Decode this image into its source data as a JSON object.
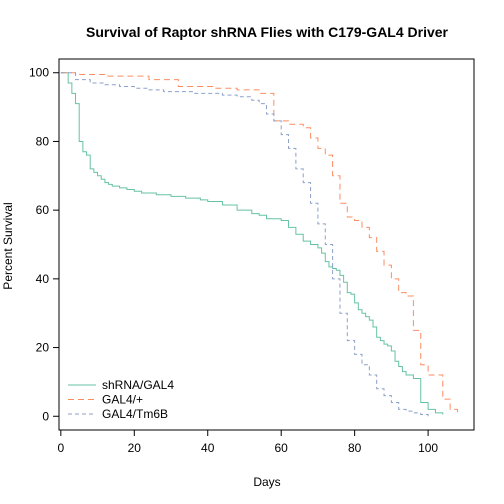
{
  "chart_data": {
    "type": "line",
    "title": "Survival of Raptor shRNA Flies with C179-GAL4 Driver",
    "xlabel": "Days",
    "ylabel": "Percent Survival",
    "xlim": [
      -0.5,
      112.5
    ],
    "ylim": [
      -4,
      104
    ],
    "xticks": [
      0,
      20,
      40,
      60,
      80,
      100
    ],
    "yticks": [
      0,
      20,
      40,
      60,
      80,
      100
    ],
    "legend_position": "bottom-left",
    "series": [
      {
        "name": "shRNA/GAL4",
        "color": "#66c2a5",
        "dash": "solid",
        "x": [
          0,
          2,
          3,
          4,
          5,
          6,
          7,
          8,
          9,
          10,
          11,
          12,
          13,
          14,
          16,
          18,
          20,
          22,
          26,
          30,
          34,
          38,
          40,
          44,
          48,
          52,
          54,
          56,
          60,
          62,
          64,
          66,
          68,
          70,
          71,
          72,
          73,
          74,
          75,
          76,
          77,
          78,
          79,
          80,
          81,
          82,
          83,
          84,
          85,
          86,
          87,
          88,
          89,
          90,
          91,
          92,
          93,
          94,
          96,
          98,
          100,
          102,
          104
        ],
        "y": [
          100,
          97,
          94,
          91,
          80,
          77,
          76,
          72,
          71,
          70,
          69,
          68,
          67.5,
          67,
          66.5,
          66,
          65.5,
          65,
          64.5,
          64,
          63.5,
          63,
          62.5,
          61.5,
          60,
          59,
          58.5,
          57.5,
          57,
          55,
          53,
          51,
          50,
          49,
          47.5,
          45,
          43.5,
          43,
          42.5,
          41,
          39,
          36,
          35.5,
          33,
          31,
          30,
          29,
          28,
          26,
          23,
          22,
          21,
          20.5,
          19,
          16,
          14.5,
          13,
          12,
          11,
          4,
          2,
          1,
          0.5
        ]
      },
      {
        "name": "GAL4/+",
        "color": "#fc8d62",
        "dash": "6,4",
        "x": [
          0,
          4,
          12,
          24,
          32,
          42,
          48,
          54,
          58,
          62,
          66,
          68,
          70,
          72,
          74,
          76,
          78,
          80,
          82,
          84,
          86,
          88,
          90,
          92,
          94,
          96,
          98,
          100,
          104,
          106,
          108
        ],
        "y": [
          100,
          99.5,
          99,
          98,
          96,
          95.5,
          95,
          94,
          86,
          85,
          84,
          81,
          78,
          76,
          70,
          62,
          58,
          57,
          55,
          52,
          48,
          44,
          40,
          36,
          35,
          25,
          15,
          12,
          5,
          2,
          1
        ]
      },
      {
        "name": "GAL4/Tm6B",
        "color": "#8da0cb",
        "dash": "4,3",
        "x": [
          0,
          4,
          8,
          12,
          16,
          20,
          24,
          28,
          32,
          36,
          40,
          44,
          48,
          52,
          54,
          56,
          58,
          60,
          62,
          64,
          66,
          68,
          70,
          72,
          74,
          76,
          78,
          80,
          82,
          84,
          86,
          88,
          90,
          92,
          94,
          96,
          98,
          100
        ],
        "y": [
          100,
          98,
          97,
          96.5,
          96,
          95.5,
          95,
          94.5,
          94.5,
          94,
          94,
          93.5,
          93,
          92,
          91,
          88,
          86,
          82,
          78,
          72,
          68,
          62,
          56,
          50,
          40,
          30,
          22,
          18,
          15,
          12,
          8,
          6,
          4,
          2,
          1.5,
          1,
          0.5,
          0
        ]
      }
    ]
  }
}
